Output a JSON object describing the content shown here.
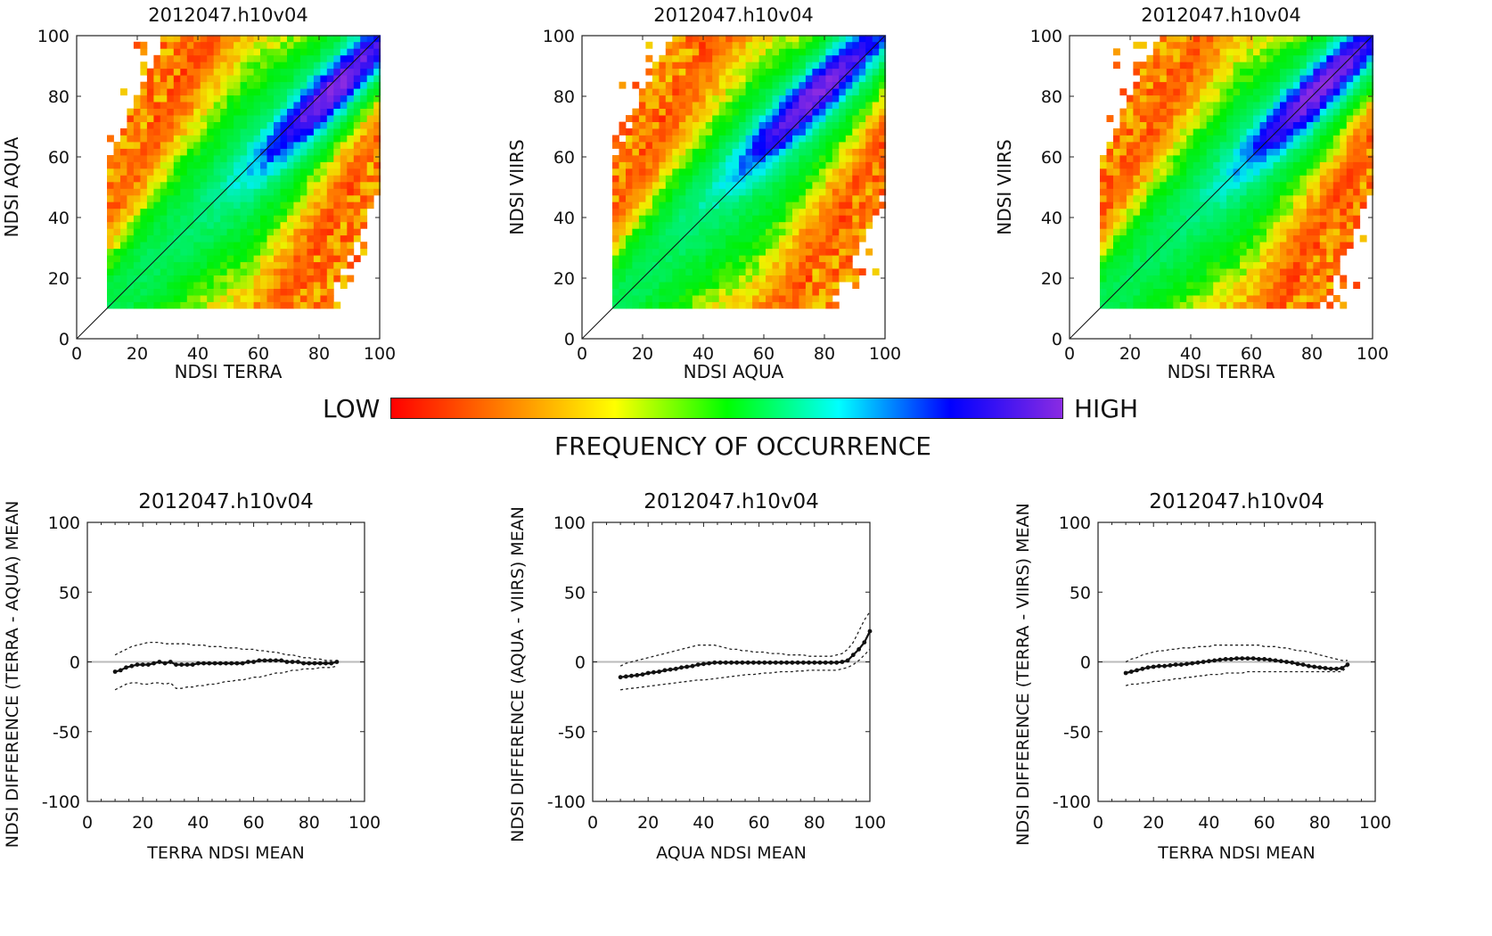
{
  "colorbar": {
    "low_label": "LOW",
    "high_label": "HIGH",
    "caption": "FREQUENCY OF OCCURRENCE",
    "colors": [
      "#ff0000",
      "#ff7f00",
      "#ffff00",
      "#00ff00",
      "#00ffff",
      "#0000ff",
      "#8a2be2"
    ]
  },
  "chart_data": [
    {
      "type": "heatmap",
      "title": "2012047.h10v04",
      "xlabel": "NDSI TERRA",
      "ylabel": "NDSI AQUA",
      "xlim": [
        0,
        100
      ],
      "ylim": [
        0,
        100
      ],
      "xticks": [
        "0",
        "20",
        "40",
        "60",
        "80",
        "100"
      ],
      "yticks": [
        "0",
        "20",
        "40",
        "60",
        "80",
        "100"
      ],
      "reference_line": "1:1",
      "peak": {
        "x": 83,
        "y": 80
      },
      "min_value": 10,
      "value_range": "low to high frequency of occurrence"
    },
    {
      "type": "heatmap",
      "title": "2012047.h10v04",
      "xlabel": "NDSI AQUA",
      "ylabel": "NDSI VIIRS",
      "xlim": [
        0,
        100
      ],
      "ylim": [
        0,
        100
      ],
      "xticks": [
        "0",
        "20",
        "40",
        "60",
        "80",
        "100"
      ],
      "yticks": [
        "0",
        "20",
        "40",
        "60",
        "80",
        "100"
      ],
      "reference_line": "1:1",
      "peak": {
        "x": 78,
        "y": 82
      },
      "min_value": 10,
      "value_range": "low to high frequency of occurrence"
    },
    {
      "type": "heatmap",
      "title": "2012047.h10v04",
      "xlabel": "NDSI TERRA",
      "ylabel": "NDSI VIIRS",
      "xlim": [
        0,
        100
      ],
      "ylim": [
        0,
        100
      ],
      "xticks": [
        "0",
        "20",
        "40",
        "60",
        "80",
        "100"
      ],
      "yticks": [
        "0",
        "20",
        "40",
        "60",
        "80",
        "100"
      ],
      "reference_line": "1:1",
      "peak": {
        "x": 82,
        "y": 82
      },
      "min_value": 10,
      "value_range": "low to high frequency of occurrence"
    },
    {
      "type": "line",
      "title": "2012047.h10v04",
      "xlabel": "TERRA NDSI MEAN",
      "ylabel": "NDSI DIFFERENCE (TERRA - AQUA) MEAN",
      "xlim": [
        0,
        100
      ],
      "ylim": [
        -100,
        100
      ],
      "xticks": [
        "0",
        "20",
        "40",
        "60",
        "80",
        "100"
      ],
      "yticks": [
        "100",
        "50",
        "0",
        "-50",
        "-100"
      ],
      "zero_line": true,
      "x": [
        10,
        12,
        14,
        16,
        18,
        20,
        22,
        24,
        26,
        28,
        30,
        32,
        34,
        36,
        38,
        40,
        42,
        44,
        46,
        48,
        50,
        52,
        54,
        56,
        58,
        60,
        62,
        64,
        66,
        68,
        70,
        72,
        74,
        76,
        78,
        80,
        82,
        84,
        86,
        88,
        90
      ],
      "series": [
        {
          "values": [
            -7,
            -6,
            -4,
            -3,
            -2,
            -2,
            -2,
            -1,
            0,
            -1,
            0,
            -2,
            -2,
            -2,
            -2,
            -1,
            -1,
            -1,
            -1,
            -1,
            -1,
            -1,
            -1,
            -1,
            0,
            0,
            1,
            1,
            1,
            1,
            1,
            0,
            0,
            0,
            -1,
            -1,
            -1,
            -1,
            -1,
            -1,
            0
          ]
        },
        {
          "values": [
            5,
            7,
            9,
            11,
            12,
            13,
            14,
            14,
            14,
            13,
            13,
            13,
            13,
            13,
            12,
            12,
            12,
            11,
            11,
            11,
            10,
            10,
            10,
            9,
            9,
            9,
            8,
            8,
            7,
            7,
            6,
            5,
            5,
            4,
            3,
            3,
            2,
            2,
            1,
            1,
            0
          ]
        },
        {
          "values": [
            -20,
            -18,
            -16,
            -15,
            -15,
            -16,
            -16,
            -15,
            -15,
            -16,
            -15,
            -19,
            -19,
            -18,
            -18,
            -17,
            -17,
            -16,
            -16,
            -15,
            -14,
            -14,
            -13,
            -13,
            -12,
            -11,
            -11,
            -10,
            -9,
            -8,
            -8,
            -7,
            -6,
            -6,
            -5,
            -5,
            -5,
            -4,
            -4,
            -4,
            -3
          ]
        }
      ]
    },
    {
      "type": "line",
      "title": "2012047.h10v04",
      "xlabel": "AQUA NDSI MEAN",
      "ylabel": "NDSI DIFFERENCE (AQUA - VIIRS) MEAN",
      "xlim": [
        0,
        100
      ],
      "ylim": [
        -100,
        100
      ],
      "xticks": [
        "0",
        "20",
        "40",
        "60",
        "80",
        "100"
      ],
      "yticks": [
        "100",
        "50",
        "0",
        "-50",
        "-100"
      ],
      "zero_line": true,
      "x": [
        10,
        12,
        14,
        16,
        18,
        20,
        22,
        24,
        26,
        28,
        30,
        32,
        34,
        36,
        38,
        40,
        42,
        44,
        46,
        48,
        50,
        52,
        54,
        56,
        58,
        60,
        62,
        64,
        66,
        68,
        70,
        72,
        74,
        76,
        78,
        80,
        82,
        84,
        86,
        88,
        90,
        92,
        94,
        96,
        98,
        100
      ],
      "series": [
        {
          "values": [
            -11,
            -10.5,
            -10,
            -9.5,
            -9,
            -8,
            -7.5,
            -7,
            -6,
            -5.5,
            -5,
            -4,
            -3.5,
            -3,
            -2,
            -1.5,
            -1,
            -0.5,
            -0.5,
            -0.5,
            -0.5,
            -0.5,
            -0.5,
            -0.5,
            -0.5,
            -0.5,
            -0.5,
            -0.5,
            -0.5,
            -0.5,
            -0.5,
            -0.5,
            -0.5,
            -0.5,
            -0.5,
            -0.5,
            -0.5,
            -0.5,
            -0.5,
            -0.5,
            0,
            1,
            5,
            9,
            14,
            22
          ]
        },
        {
          "values": [
            -3,
            -1,
            0,
            1,
            2,
            3,
            4,
            5,
            6,
            7,
            8,
            9,
            10,
            11,
            12,
            12,
            12,
            12,
            11,
            10,
            9,
            9,
            8,
            8,
            7,
            7,
            7,
            6,
            6,
            6,
            5,
            5,
            5,
            5,
            4,
            4,
            4,
            4,
            4,
            5,
            6,
            9,
            14,
            22,
            30,
            36
          ]
        },
        {
          "values": [
            -20,
            -19.5,
            -19,
            -18.5,
            -18,
            -17.5,
            -17,
            -16.5,
            -16,
            -15.5,
            -15,
            -14.5,
            -14,
            -13.5,
            -13,
            -13,
            -12.5,
            -12,
            -11.5,
            -11,
            -10.5,
            -10,
            -9.5,
            -9,
            -9,
            -8.5,
            -8,
            -8,
            -7.5,
            -7,
            -7,
            -7,
            -6.5,
            -6.5,
            -6,
            -6,
            -6,
            -6,
            -6,
            -6,
            -5,
            -4,
            -2,
            1,
            5,
            9
          ]
        }
      ]
    },
    {
      "type": "line",
      "title": "2012047.h10v04",
      "xlabel": "TERRA NDSI MEAN",
      "ylabel": "NDSI DIFFERENCE (TERRA - VIIRS) MEAN",
      "xlim": [
        0,
        100
      ],
      "ylim": [
        -100,
        100
      ],
      "xticks": [
        "0",
        "20",
        "40",
        "60",
        "80",
        "100"
      ],
      "yticks": [
        "100",
        "50",
        "0",
        "-50",
        "-100"
      ],
      "zero_line": true,
      "x": [
        10,
        12,
        14,
        16,
        18,
        20,
        22,
        24,
        26,
        28,
        30,
        32,
        34,
        36,
        38,
        40,
        42,
        44,
        46,
        48,
        50,
        52,
        54,
        56,
        58,
        60,
        62,
        64,
        66,
        68,
        70,
        72,
        74,
        76,
        78,
        80,
        82,
        84,
        86,
        88,
        90
      ],
      "series": [
        {
          "values": [
            -8,
            -7,
            -6,
            -5,
            -4,
            -3.5,
            -3,
            -3,
            -2.5,
            -2,
            -2,
            -1.5,
            -1,
            -0.5,
            0,
            0.5,
            1,
            1.5,
            2,
            2,
            2.5,
            2.5,
            2.5,
            2.5,
            2,
            2,
            1.5,
            1,
            0.5,
            0,
            -0.5,
            -1.5,
            -2,
            -3,
            -3.5,
            -4,
            -4.5,
            -5,
            -5,
            -4.5,
            -2
          ]
        },
        {
          "values": [
            0,
            2,
            3,
            5,
            6,
            7,
            8,
            8,
            9,
            9,
            10,
            10,
            10,
            11,
            11,
            11,
            12,
            12,
            12,
            12,
            12,
            12,
            12,
            12,
            12,
            11,
            11,
            11,
            10,
            10,
            9,
            8,
            8,
            7,
            6,
            5,
            4,
            3,
            2,
            1,
            1
          ]
        },
        {
          "values": [
            -17,
            -16,
            -16,
            -15,
            -15,
            -14,
            -14,
            -13,
            -13,
            -12,
            -12,
            -11,
            -11,
            -10,
            -10,
            -9,
            -9,
            -9,
            -8,
            -8,
            -8,
            -8,
            -7,
            -7,
            -7,
            -7,
            -7,
            -7,
            -7,
            -7,
            -7,
            -7,
            -7,
            -7,
            -7,
            -7,
            -7,
            -7,
            -7,
            -7,
            -3
          ]
        }
      ]
    }
  ]
}
